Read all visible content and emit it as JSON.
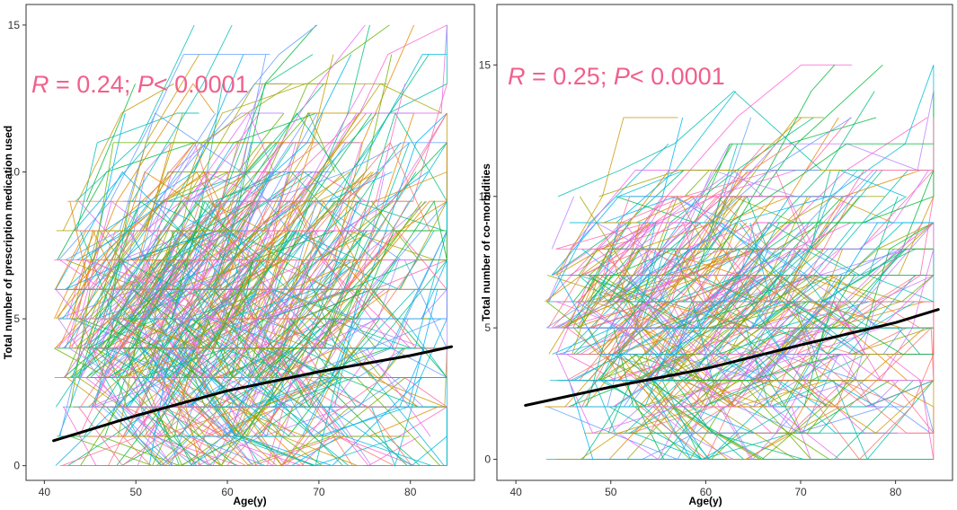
{
  "chart_data": [
    {
      "type": "line",
      "xlabel": "Age(y)",
      "ylabel": "Total number of prescription medication used",
      "xlim": [
        38,
        87
      ],
      "ylim": [
        -0.5,
        15.7
      ],
      "x_ticks": [
        40,
        50,
        60,
        70,
        80
      ],
      "y_ticks": [
        0,
        5,
        10,
        15
      ],
      "annotation": {
        "r_sym": "R",
        "r_text": " = 0.24; ",
        "p_sym": "P",
        "p_text": "< 0.0001"
      },
      "trend_line": {
        "x": [
          41,
          50,
          60,
          70,
          80,
          84.5
        ],
        "y": [
          0.85,
          1.7,
          2.55,
          3.2,
          3.75,
          4.05
        ],
        "color": "#000000"
      },
      "n_subject_lines": 650,
      "subject_x_range": [
        41,
        84
      ],
      "subject_y_range": [
        0,
        15
      ]
    },
    {
      "type": "line",
      "xlabel": "Age(y)",
      "ylabel": "Total number of co-morbidities",
      "xlim": [
        38,
        86
      ],
      "ylim": [
        -0.8,
        17.3
      ],
      "x_ticks": [
        40,
        50,
        60,
        70,
        80
      ],
      "y_ticks": [
        0,
        5,
        10,
        15
      ],
      "annotation": {
        "r_sym": "R",
        "r_text": " = 0.25; ",
        "p_sym": "P",
        "p_text": "< 0.0001"
      },
      "trend_line": {
        "x": [
          41,
          50,
          60,
          70,
          80,
          84.5
        ],
        "y": [
          2.05,
          2.75,
          3.45,
          4.35,
          5.2,
          5.7
        ],
        "color": "#000000"
      },
      "n_subject_lines": 480,
      "subject_x_range": [
        43,
        84
      ],
      "subject_y_range": [
        0,
        15
      ]
    }
  ],
  "palette": [
    "#f8766d",
    "#e58700",
    "#c99800",
    "#a3a500",
    "#6bb100",
    "#00ba38",
    "#00bf7d",
    "#00c0af",
    "#00bcd8",
    "#00b0f6",
    "#619cff",
    "#b983ff",
    "#e76bf3",
    "#fd61d1",
    "#ff67a4"
  ],
  "stat_color": "#f0608c"
}
